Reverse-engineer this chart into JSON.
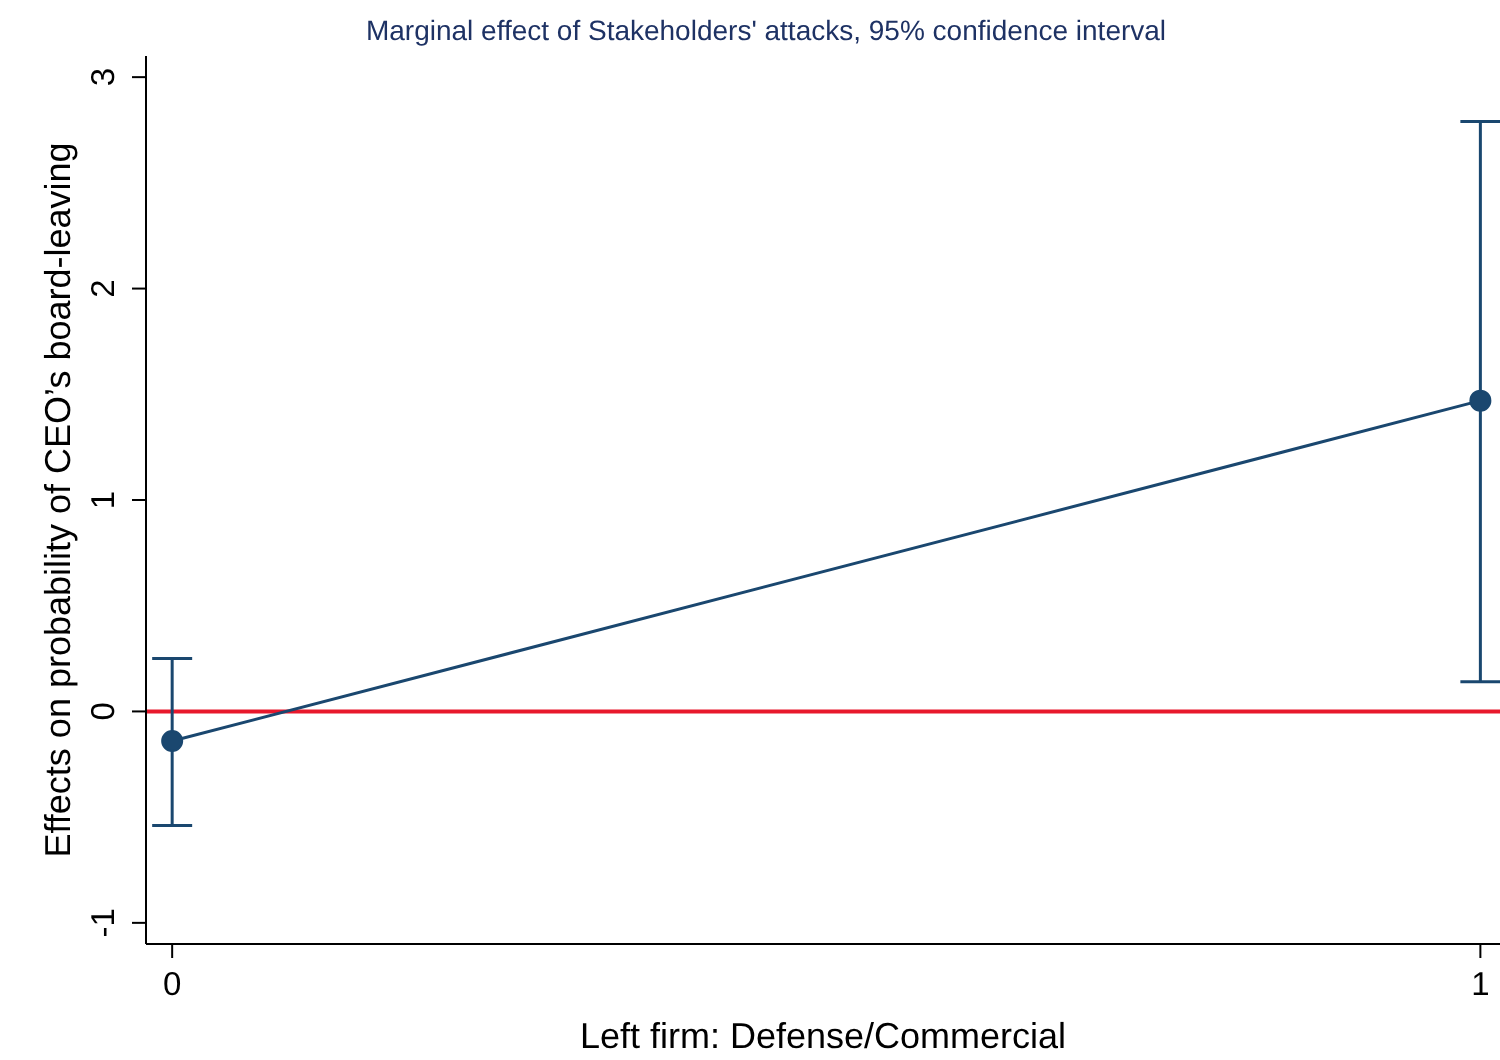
{
  "chart_data": {
    "type": "line",
    "title": "Marginal effect of Stakeholders' attacks, 95% confidence interval",
    "xlabel": "Left firm: Defense/Commercial",
    "ylabel": "Effects on probability of CEO’s board-leaving",
    "x": [
      0,
      1
    ],
    "values": [
      -0.14,
      1.47
    ],
    "errors": [
      [
        -0.54,
        0.25
      ],
      [
        0.14,
        2.79
      ]
    ],
    "color": "#1a476f",
    "marker": "circle",
    "line_style": "solid",
    "xlim": [
      -0.02,
      1.015
    ],
    "xticks": [
      0,
      1
    ],
    "ylim": [
      -1.1,
      3.1
    ],
    "yticks": [
      -1,
      0,
      1,
      2,
      3
    ],
    "ref_lines": [
      {
        "axis": "y",
        "value": 0,
        "color": "#e8182c"
      }
    ]
  }
}
